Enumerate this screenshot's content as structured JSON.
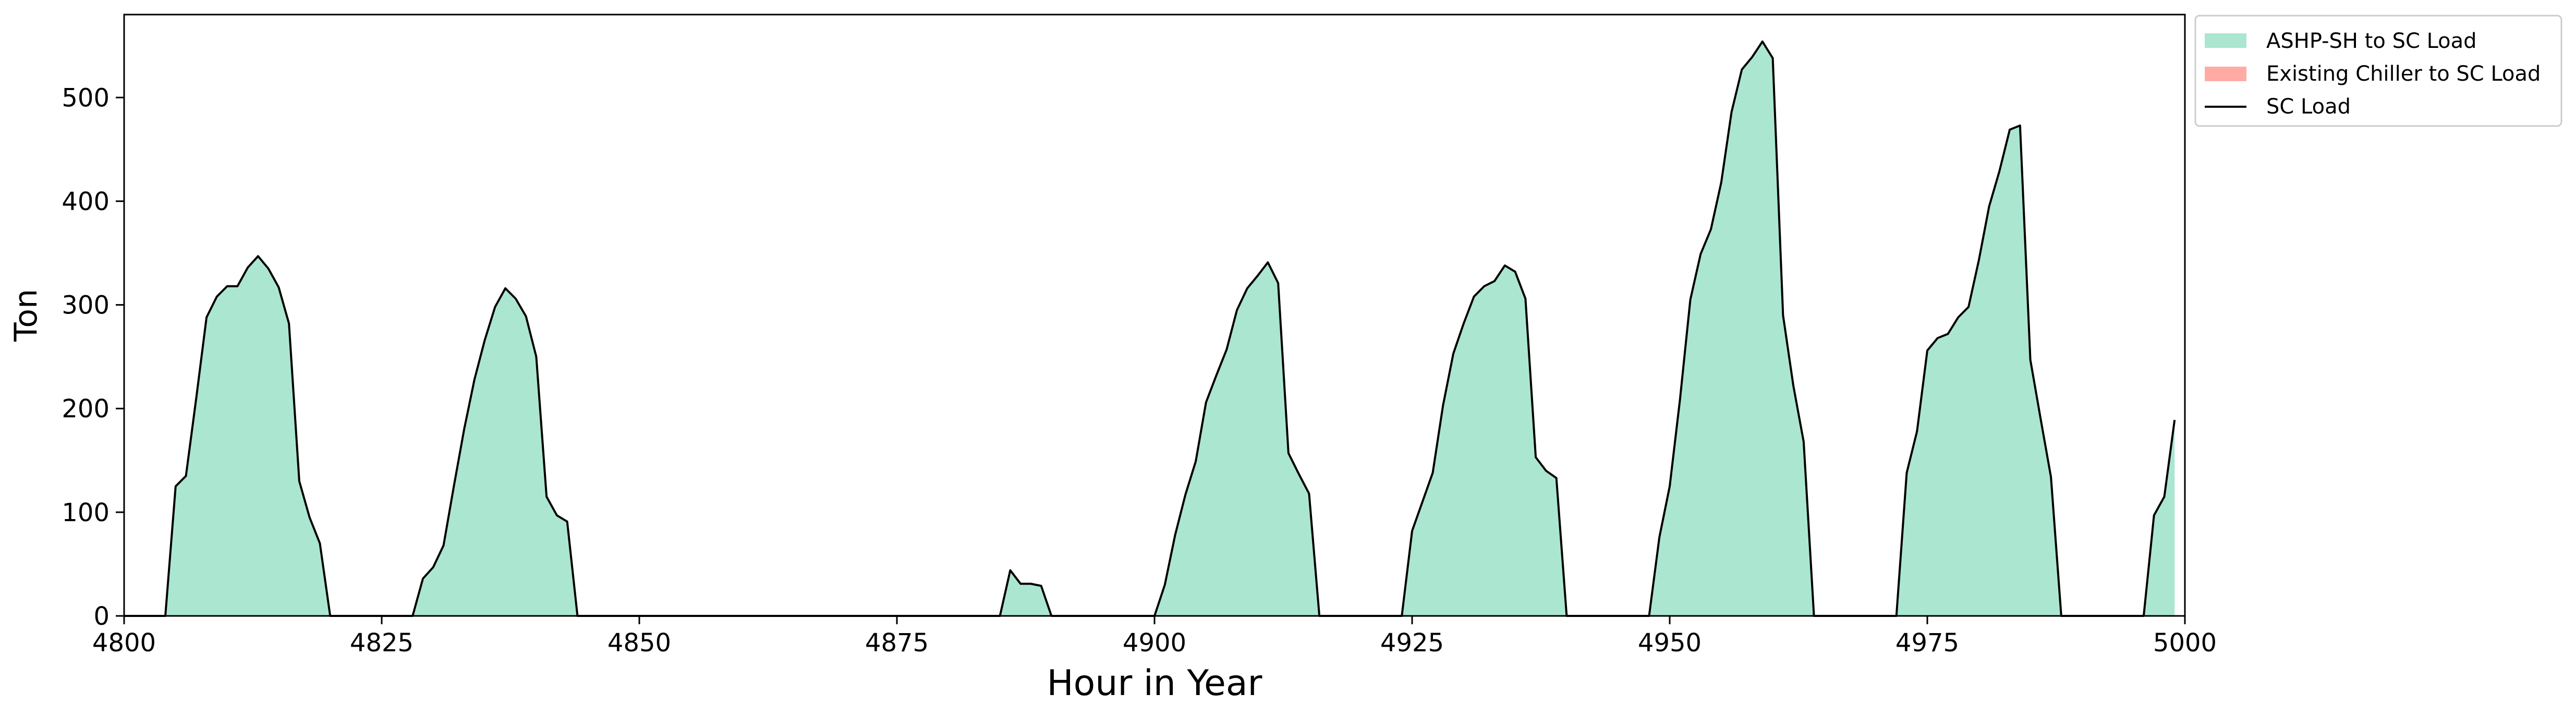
{
  "chart_data": {
    "type": "area",
    "xlabel": "Hour in Year",
    "ylabel": "Ton",
    "xlim": [
      4800,
      5000
    ],
    "ylim": [
      0,
      580
    ],
    "xticks": [
      4800,
      4825,
      4850,
      4875,
      4900,
      4925,
      4950,
      4975,
      5000
    ],
    "yticks": [
      0,
      100,
      200,
      300,
      400,
      500
    ],
    "grid": false,
    "legend_position": "outside-top-right",
    "series": [
      {
        "name": "ASHP-SH to SC Load",
        "kind": "stacked-area",
        "color": "#abe6d1",
        "values": [
          [
            4800,
            0
          ],
          [
            4801,
            0
          ],
          [
            4802,
            0
          ],
          [
            4803,
            0
          ],
          [
            4804,
            0
          ],
          [
            4805,
            125
          ],
          [
            4806,
            135
          ],
          [
            4807,
            210
          ],
          [
            4808,
            288
          ],
          [
            4809,
            308
          ],
          [
            4810,
            318
          ],
          [
            4811,
            318
          ],
          [
            4812,
            336
          ],
          [
            4813,
            347
          ],
          [
            4814,
            335
          ],
          [
            4815,
            317
          ],
          [
            4816,
            282
          ],
          [
            4817,
            130
          ],
          [
            4818,
            95
          ],
          [
            4819,
            70
          ],
          [
            4820,
            0
          ],
          [
            4821,
            0
          ],
          [
            4822,
            0
          ],
          [
            4823,
            0
          ],
          [
            4824,
            0
          ],
          [
            4825,
            0
          ],
          [
            4826,
            0
          ],
          [
            4827,
            0
          ],
          [
            4828,
            0
          ],
          [
            4829,
            36
          ],
          [
            4830,
            47
          ],
          [
            4831,
            68
          ],
          [
            4832,
            125
          ],
          [
            4833,
            180
          ],
          [
            4834,
            228
          ],
          [
            4835,
            266
          ],
          [
            4836,
            298
          ],
          [
            4837,
            316
          ],
          [
            4838,
            306
          ],
          [
            4839,
            289
          ],
          [
            4840,
            250
          ],
          [
            4841,
            115
          ],
          [
            4842,
            97
          ],
          [
            4843,
            91
          ],
          [
            4844,
            0
          ],
          [
            4845,
            0
          ],
          [
            4846,
            0
          ],
          [
            4847,
            0
          ],
          [
            4848,
            0
          ],
          [
            4849,
            0
          ],
          [
            4850,
            0
          ],
          [
            4851,
            0
          ],
          [
            4852,
            0
          ],
          [
            4853,
            0
          ],
          [
            4854,
            0
          ],
          [
            4855,
            0
          ],
          [
            4856,
            0
          ],
          [
            4857,
            0
          ],
          [
            4858,
            0
          ],
          [
            4859,
            0
          ],
          [
            4860,
            0
          ],
          [
            4861,
            0
          ],
          [
            4862,
            0
          ],
          [
            4863,
            0
          ],
          [
            4864,
            0
          ],
          [
            4865,
            0
          ],
          [
            4866,
            0
          ],
          [
            4867,
            0
          ],
          [
            4868,
            0
          ],
          [
            4869,
            0
          ],
          [
            4870,
            0
          ],
          [
            4871,
            0
          ],
          [
            4872,
            0
          ],
          [
            4873,
            0
          ],
          [
            4874,
            0
          ],
          [
            4875,
            0
          ],
          [
            4876,
            0
          ],
          [
            4877,
            0
          ],
          [
            4878,
            0
          ],
          [
            4879,
            0
          ],
          [
            4880,
            0
          ],
          [
            4881,
            0
          ],
          [
            4882,
            0
          ],
          [
            4883,
            0
          ],
          [
            4884,
            0
          ],
          [
            4885,
            0
          ],
          [
            4886,
            44
          ],
          [
            4887,
            31
          ],
          [
            4888,
            31
          ],
          [
            4889,
            29
          ],
          [
            4890,
            0
          ],
          [
            4891,
            0
          ],
          [
            4892,
            0
          ],
          [
            4893,
            0
          ],
          [
            4894,
            0
          ],
          [
            4895,
            0
          ],
          [
            4896,
            0
          ],
          [
            4897,
            0
          ],
          [
            4898,
            0
          ],
          [
            4899,
            0
          ],
          [
            4900,
            0
          ],
          [
            4901,
            30
          ],
          [
            4902,
            78
          ],
          [
            4903,
            117
          ],
          [
            4904,
            149
          ],
          [
            4905,
            206
          ],
          [
            4906,
            232
          ],
          [
            4907,
            257
          ],
          [
            4908,
            295
          ],
          [
            4909,
            316
          ],
          [
            4910,
            328
          ],
          [
            4911,
            341
          ],
          [
            4912,
            321
          ],
          [
            4913,
            157
          ],
          [
            4914,
            137
          ],
          [
            4915,
            118
          ],
          [
            4916,
            0
          ],
          [
            4917,
            0
          ],
          [
            4918,
            0
          ],
          [
            4919,
            0
          ],
          [
            4920,
            0
          ],
          [
            4921,
            0
          ],
          [
            4922,
            0
          ],
          [
            4923,
            0
          ],
          [
            4924,
            0
          ],
          [
            4925,
            82
          ],
          [
            4926,
            110
          ],
          [
            4927,
            138
          ],
          [
            4928,
            203
          ],
          [
            4929,
            253
          ],
          [
            4930,
            282
          ],
          [
            4931,
            308
          ],
          [
            4932,
            318
          ],
          [
            4933,
            323
          ],
          [
            4934,
            338
          ],
          [
            4935,
            332
          ],
          [
            4936,
            306
          ],
          [
            4937,
            153
          ],
          [
            4938,
            140
          ],
          [
            4939,
            133
          ],
          [
            4940,
            0
          ],
          [
            4941,
            0
          ],
          [
            4942,
            0
          ],
          [
            4943,
            0
          ],
          [
            4944,
            0
          ],
          [
            4945,
            0
          ],
          [
            4946,
            0
          ],
          [
            4947,
            0
          ],
          [
            4948,
            0
          ],
          [
            4949,
            76
          ],
          [
            4950,
            125
          ],
          [
            4951,
            209
          ],
          [
            4952,
            305
          ],
          [
            4953,
            349
          ],
          [
            4954,
            373
          ],
          [
            4955,
            418
          ],
          [
            4956,
            486
          ],
          [
            4957,
            527
          ],
          [
            4958,
            539
          ],
          [
            4959,
            554
          ],
          [
            4960,
            538
          ],
          [
            4961,
            290
          ],
          [
            4962,
            222
          ],
          [
            4963,
            168
          ],
          [
            4964,
            0
          ],
          [
            4965,
            0
          ],
          [
            4966,
            0
          ],
          [
            4967,
            0
          ],
          [
            4968,
            0
          ],
          [
            4969,
            0
          ],
          [
            4970,
            0
          ],
          [
            4971,
            0
          ],
          [
            4972,
            0
          ],
          [
            4973,
            138
          ],
          [
            4974,
            178
          ],
          [
            4975,
            256
          ],
          [
            4976,
            268
          ],
          [
            4977,
            272
          ],
          [
            4978,
            288
          ],
          [
            4979,
            298
          ],
          [
            4980,
            343
          ],
          [
            4981,
            395
          ],
          [
            4982,
            429
          ],
          [
            4983,
            469
          ],
          [
            4984,
            473
          ],
          [
            4985,
            247
          ],
          [
            4986,
            190
          ],
          [
            4987,
            134
          ],
          [
            4988,
            0
          ],
          [
            4989,
            0
          ],
          [
            4990,
            0
          ],
          [
            4991,
            0
          ],
          [
            4992,
            0
          ],
          [
            4993,
            0
          ],
          [
            4994,
            0
          ],
          [
            4995,
            0
          ],
          [
            4996,
            0
          ],
          [
            4997,
            97
          ],
          [
            4998,
            115
          ],
          [
            4999,
            189
          ]
        ]
      },
      {
        "name": "Existing Chiller to SC Load",
        "kind": "stacked-area",
        "color": "#ffaba4",
        "values": []
      },
      {
        "name": "SC Load",
        "kind": "line",
        "color": "#000000"
      }
    ]
  }
}
